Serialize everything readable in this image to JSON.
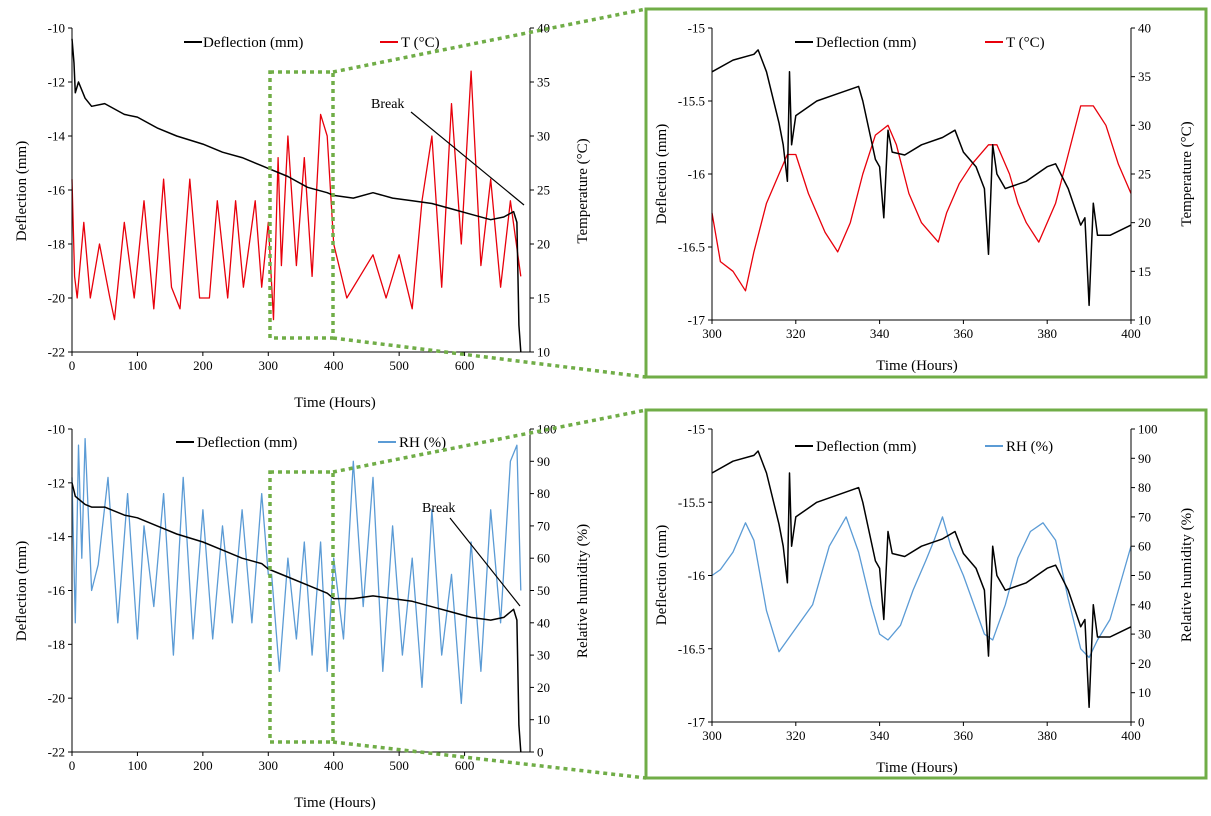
{
  "chart_data": [
    {
      "type": "line",
      "id": "top-left",
      "xlabel": "Time (Hours)",
      "ylabel": "Deflection  (mm)",
      "y2label": "Temperature (°C)",
      "xlim": [
        0,
        700
      ],
      "ylim": [
        -22,
        -10
      ],
      "y2lim": [
        10,
        40
      ],
      "xticks": [
        0,
        100,
        200,
        300,
        400,
        500,
        600
      ],
      "yticks": [
        -22,
        -20,
        -18,
        -16,
        -14,
        -12,
        -10
      ],
      "y2ticks": [
        10,
        15,
        20,
        25,
        30,
        35,
        40
      ],
      "annotation": "Break",
      "series": [
        {
          "name": "Deflection (mm)",
          "axis": "y",
          "color": "#000000",
          "x": [
            0,
            3,
            5,
            10,
            20,
            30,
            50,
            80,
            100,
            130,
            160,
            200,
            230,
            260,
            290,
            300,
            330,
            360,
            390,
            400,
            430,
            460,
            490,
            520,
            550,
            580,
            610,
            640,
            660,
            675,
            680,
            683,
            686
          ],
          "y": [
            -10.4,
            -11.3,
            -12.4,
            -12.0,
            -12.6,
            -12.9,
            -12.8,
            -13.2,
            -13.3,
            -13.7,
            -14.0,
            -14.3,
            -14.6,
            -14.8,
            -15.1,
            -15.2,
            -15.5,
            -15.9,
            -16.1,
            -16.2,
            -16.3,
            -16.1,
            -16.3,
            -16.4,
            -16.5,
            -16.7,
            -16.9,
            -17.1,
            -17.0,
            -16.8,
            -17.2,
            -21.0,
            -22.0
          ]
        },
        {
          "name": "T (°C)",
          "axis": "y2",
          "color": "#e8000b",
          "x": [
            0,
            4,
            8,
            18,
            28,
            42,
            58,
            65,
            80,
            95,
            110,
            125,
            140,
            152,
            165,
            180,
            195,
            210,
            222,
            238,
            250,
            262,
            280,
            290,
            300,
            308,
            315,
            320,
            330,
            343,
            355,
            367,
            380,
            390,
            400,
            420,
            440,
            460,
            480,
            500,
            520,
            535,
            550,
            565,
            580,
            595,
            610,
            625,
            640,
            655,
            670,
            686
          ],
          "y": [
            26,
            17,
            15,
            22,
            15,
            20,
            15,
            13,
            22,
            15,
            24,
            14,
            26,
            16,
            14,
            26,
            15,
            15,
            24,
            15,
            24,
            16,
            24,
            16,
            22,
            13,
            28,
            18,
            30,
            18,
            28,
            17,
            32,
            30,
            20,
            15,
            17,
            19,
            15,
            19,
            14,
            24,
            30,
            16,
            33,
            20,
            36,
            18,
            26,
            16,
            24,
            17
          ]
        }
      ]
    },
    {
      "type": "line",
      "id": "top-right",
      "xlabel": "Time (Hours)",
      "ylabel": "Deflection  (mm)",
      "y2label": "Temperature (°C)",
      "xlim": [
        300,
        400
      ],
      "ylim": [
        -17,
        -15
      ],
      "y2lim": [
        10,
        40
      ],
      "xticks": [
        300,
        320,
        340,
        360,
        380,
        400
      ],
      "yticks": [
        -17,
        -16.5,
        -16,
        -15.5,
        -15
      ],
      "y2ticks": [
        10,
        15,
        20,
        25,
        30,
        35,
        40
      ],
      "series": [
        {
          "name": "Deflection (mm)",
          "axis": "y",
          "color": "#000000",
          "x": [
            300,
            305,
            310,
            311,
            313,
            316,
            317,
            318,
            318.5,
            319,
            320,
            325,
            330,
            335,
            336,
            339,
            340,
            341,
            342,
            343,
            346,
            350,
            355,
            358,
            360,
            363,
            365,
            366,
            367,
            368,
            370,
            375,
            380,
            382,
            385,
            388,
            389,
            390,
            391,
            392,
            395,
            400
          ],
          "y": [
            -15.3,
            -15.22,
            -15.18,
            -15.15,
            -15.3,
            -15.65,
            -15.8,
            -16.05,
            -15.3,
            -15.8,
            -15.6,
            -15.5,
            -15.45,
            -15.4,
            -15.5,
            -15.9,
            -15.95,
            -16.3,
            -15.7,
            -15.85,
            -15.87,
            -15.8,
            -15.75,
            -15.7,
            -15.85,
            -15.95,
            -16.1,
            -16.55,
            -15.8,
            -16.0,
            -16.1,
            -16.05,
            -15.95,
            -15.93,
            -16.1,
            -16.35,
            -16.3,
            -16.9,
            -16.2,
            -16.42,
            -16.42,
            -16.35
          ]
        },
        {
          "name": "T (°C)",
          "axis": "y2",
          "color": "#e8000b",
          "x": [
            300,
            302,
            305,
            308,
            310,
            313,
            316,
            318,
            320,
            323,
            327,
            330,
            333,
            336,
            339,
            342,
            344,
            347,
            350,
            352,
            354,
            356,
            359,
            362,
            366,
            368,
            371,
            373,
            375,
            378,
            382,
            385,
            388,
            391,
            394,
            397,
            400
          ],
          "y": [
            21,
            16,
            15,
            13,
            17,
            22,
            25,
            27,
            27,
            23,
            19,
            17,
            20,
            25,
            29,
            30,
            28,
            23,
            20,
            19,
            18,
            21,
            24,
            26,
            28,
            28,
            25,
            22,
            20,
            18,
            22,
            27,
            32,
            32,
            30,
            26,
            23
          ]
        }
      ]
    },
    {
      "type": "line",
      "id": "bottom-left",
      "xlabel": "Time (Hours)",
      "ylabel": "Deflection  (mm)",
      "y2label": "Relative humidity (%)",
      "xlim": [
        0,
        700
      ],
      "ylim": [
        -22,
        -10
      ],
      "y2lim": [
        0,
        100
      ],
      "xticks": [
        0,
        100,
        200,
        300,
        400,
        500,
        600
      ],
      "yticks": [
        -22,
        -20,
        -18,
        -16,
        -14,
        -12,
        -10
      ],
      "y2ticks": [
        0,
        10,
        20,
        30,
        40,
        50,
        60,
        70,
        80,
        90,
        100
      ],
      "annotation": "Break",
      "series": [
        {
          "name": "Deflection (mm)",
          "axis": "y",
          "color": "#000000",
          "x": [
            0,
            3,
            5,
            10,
            20,
            30,
            50,
            80,
            100,
            130,
            160,
            200,
            230,
            260,
            290,
            300,
            330,
            360,
            390,
            400,
            430,
            460,
            490,
            520,
            550,
            580,
            610,
            640,
            660,
            675,
            680,
            683,
            686
          ],
          "y": [
            -12.0,
            -12.3,
            -12.5,
            -12.6,
            -12.8,
            -12.9,
            -12.9,
            -13.2,
            -13.3,
            -13.6,
            -13.9,
            -14.2,
            -14.5,
            -14.8,
            -15.0,
            -15.2,
            -15.5,
            -15.8,
            -16.1,
            -16.3,
            -16.3,
            -16.2,
            -16.3,
            -16.4,
            -16.6,
            -16.8,
            -17.0,
            -17.1,
            -17.0,
            -16.7,
            -17.1,
            -21.0,
            -22.0
          ]
        },
        {
          "name": "RH (%)",
          "axis": "y2",
          "color": "#5b9bd5",
          "x": [
            0,
            5,
            10,
            15,
            20,
            30,
            40,
            55,
            70,
            85,
            100,
            110,
            125,
            140,
            155,
            170,
            185,
            200,
            215,
            230,
            245,
            260,
            275,
            290,
            300,
            305,
            317,
            330,
            343,
            355,
            367,
            380,
            390,
            400,
            415,
            430,
            445,
            460,
            475,
            490,
            505,
            520,
            535,
            550,
            565,
            580,
            595,
            610,
            625,
            640,
            655,
            670,
            680,
            686
          ],
          "y": [
            85,
            40,
            95,
            60,
            97,
            50,
            58,
            85,
            40,
            80,
            35,
            70,
            45,
            80,
            30,
            85,
            35,
            75,
            35,
            70,
            40,
            75,
            40,
            80,
            55,
            55,
            25,
            60,
            35,
            65,
            30,
            65,
            25,
            60,
            35,
            90,
            45,
            85,
            25,
            70,
            30,
            60,
            20,
            75,
            30,
            55,
            15,
            65,
            25,
            75,
            40,
            90,
            95,
            50
          ]
        }
      ]
    },
    {
      "type": "line",
      "id": "bottom-right",
      "xlabel": "Time (Hours)",
      "ylabel": "Deflection  (mm)",
      "y2label": "Relative humidity (%)",
      "xlim": [
        300,
        400
      ],
      "ylim": [
        -17,
        -15
      ],
      "y2lim": [
        0,
        100
      ],
      "xticks": [
        300,
        320,
        340,
        360,
        380,
        400
      ],
      "yticks": [
        -17,
        -16.5,
        -16,
        -15.5,
        -15
      ],
      "y2ticks": [
        0,
        10,
        20,
        30,
        40,
        50,
        60,
        70,
        80,
        90,
        100
      ],
      "series": [
        {
          "name": "Deflection (mm)",
          "axis": "y",
          "color": "#000000",
          "x": [
            300,
            305,
            310,
            311,
            313,
            316,
            317,
            318,
            318.5,
            319,
            320,
            325,
            330,
            335,
            336,
            339,
            340,
            341,
            342,
            343,
            346,
            350,
            355,
            358,
            360,
            363,
            365,
            366,
            367,
            368,
            370,
            375,
            380,
            382,
            385,
            388,
            389,
            390,
            391,
            392,
            395,
            400
          ],
          "y": [
            -15.3,
            -15.22,
            -15.18,
            -15.15,
            -15.3,
            -15.65,
            -15.8,
            -16.05,
            -15.3,
            -15.8,
            -15.6,
            -15.5,
            -15.45,
            -15.4,
            -15.5,
            -15.9,
            -15.95,
            -16.3,
            -15.7,
            -15.85,
            -15.87,
            -15.8,
            -15.75,
            -15.7,
            -15.85,
            -15.95,
            -16.1,
            -16.55,
            -15.8,
            -16.0,
            -16.1,
            -16.05,
            -15.95,
            -15.93,
            -16.1,
            -16.35,
            -16.3,
            -16.9,
            -16.2,
            -16.42,
            -16.42,
            -16.35
          ]
        },
        {
          "name": "RH (%)",
          "axis": "y2",
          "color": "#5b9bd5",
          "x": [
            300,
            302,
            305,
            308,
            310,
            313,
            316,
            318,
            320,
            324,
            328,
            332,
            335,
            338,
            340,
            342,
            345,
            348,
            351,
            353,
            355,
            357,
            360,
            362,
            365,
            367,
            370,
            373,
            376,
            379,
            382,
            385,
            388,
            390,
            392,
            395,
            398,
            400
          ],
          "y": [
            50,
            52,
            58,
            68,
            62,
            38,
            24,
            28,
            32,
            40,
            60,
            70,
            58,
            40,
            30,
            28,
            33,
            45,
            55,
            62,
            70,
            60,
            50,
            42,
            30,
            28,
            40,
            56,
            65,
            68,
            62,
            42,
            25,
            22,
            28,
            35,
            50,
            60
          ]
        }
      ]
    }
  ]
}
